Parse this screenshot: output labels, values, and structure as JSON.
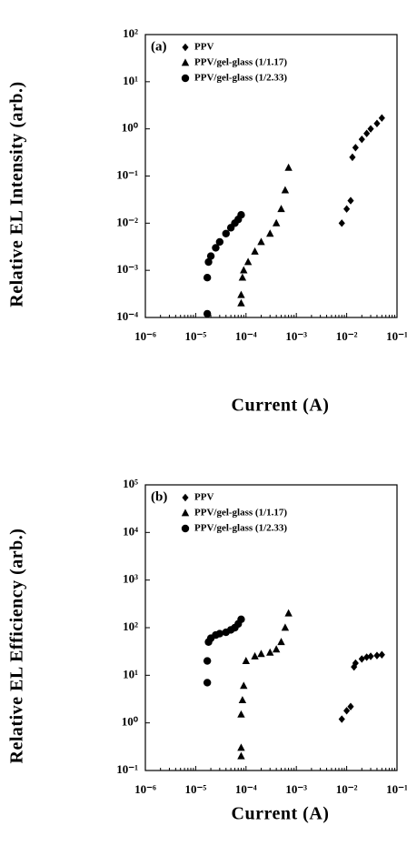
{
  "chart_data": [
    {
      "type": "scatter",
      "panel_label": "(a)",
      "xlabel": "Current (A)",
      "ylabel": "Relative EL Intensity (arb.)",
      "log_x": true,
      "log_y": true,
      "xlim": [
        1e-06,
        0.1
      ],
      "xticks": [
        {
          "value": 1e-06,
          "label": "10⁻⁶"
        },
        {
          "value": 1e-05,
          "label": "10⁻⁵"
        },
        {
          "value": 0.0001,
          "label": "10⁻⁴"
        },
        {
          "value": 0.001,
          "label": "10⁻³"
        },
        {
          "value": 0.01,
          "label": "10⁻²"
        },
        {
          "value": 0.1,
          "label": "10⁻¹"
        }
      ],
      "ylim": [
        0.0001,
        100
      ],
      "yticks": [
        {
          "value": 0.0001,
          "label": "10⁻⁴"
        },
        {
          "value": 0.001,
          "label": "10⁻³"
        },
        {
          "value": 0.01,
          "label": "10⁻²"
        },
        {
          "value": 0.1,
          "label": "10⁻¹"
        },
        {
          "value": 1,
          "label": "10⁰"
        },
        {
          "value": 10,
          "label": "10¹"
        },
        {
          "value": 100,
          "label": "10²"
        }
      ],
      "series": [
        {
          "name": "PPV",
          "marker": "diamond",
          "color": "#000000",
          "x": [
            0.008,
            0.01,
            0.012,
            0.013,
            0.015,
            0.02,
            0.025,
            0.03,
            0.04,
            0.05
          ],
          "values": [
            0.01,
            0.02,
            0.03,
            0.25,
            0.4,
            0.6,
            0.8,
            1,
            1.3,
            1.7
          ]
        },
        {
          "name": "PPV/gel-glass (1/1.17)",
          "marker": "triangle",
          "color": "#000000",
          "x": [
            8e-05,
            8e-05,
            8.5e-05,
            9e-05,
            0.00011,
            0.00015,
            0.0002,
            0.0003,
            0.0004,
            0.0005,
            0.0006,
            0.0007
          ],
          "values": [
            0.0002,
            0.0003,
            0.0007,
            0.001,
            0.0015,
            0.0025,
            0.004,
            0.006,
            0.01,
            0.02,
            0.05,
            0.15
          ]
        },
        {
          "name": "PPV/gel-glass (1/2.33)",
          "marker": "circle",
          "color": "#000000",
          "x": [
            1.7e-05,
            1.7e-05,
            1.8e-05,
            2e-05,
            2.5e-05,
            3e-05,
            4e-05,
            5e-05,
            6e-05,
            7e-05,
            8e-05
          ],
          "values": [
            0.00012,
            0.0007,
            0.0015,
            0.002,
            0.003,
            0.004,
            0.006,
            0.008,
            0.01,
            0.012,
            0.015
          ]
        }
      ]
    },
    {
      "type": "scatter",
      "panel_label": "(b)",
      "xlabel": "Current (A)",
      "ylabel": "Relative EL Efficiency (arb.)",
      "log_x": true,
      "log_y": true,
      "xlim": [
        1e-06,
        0.1
      ],
      "xticks": [
        {
          "value": 1e-06,
          "label": "10⁻⁶"
        },
        {
          "value": 1e-05,
          "label": "10⁻⁵"
        },
        {
          "value": 0.0001,
          "label": "10⁻⁴"
        },
        {
          "value": 0.001,
          "label": "10⁻³"
        },
        {
          "value": 0.01,
          "label": "10⁻²"
        },
        {
          "value": 0.1,
          "label": "10⁻¹"
        }
      ],
      "ylim": [
        0.1,
        100000
      ],
      "yticks": [
        {
          "value": 0.1,
          "label": "10⁻¹"
        },
        {
          "value": 1,
          "label": "10⁰"
        },
        {
          "value": 10,
          "label": "10¹"
        },
        {
          "value": 100,
          "label": "10²"
        },
        {
          "value": 1000,
          "label": "10³"
        },
        {
          "value": 10000,
          "label": "10⁴"
        },
        {
          "value": 100000,
          "label": "10⁵"
        }
      ],
      "series": [
        {
          "name": "PPV",
          "marker": "diamond",
          "color": "#000000",
          "x": [
            0.008,
            0.01,
            0.012,
            0.014,
            0.015,
            0.02,
            0.025,
            0.03,
            0.04,
            0.05
          ],
          "values": [
            1.2,
            1.8,
            2.2,
            15,
            18,
            22,
            24,
            25,
            26,
            27
          ]
        },
        {
          "name": "PPV/gel-glass (1/1.17)",
          "marker": "triangle",
          "color": "#000000",
          "x": [
            8e-05,
            8e-05,
            8e-05,
            8.5e-05,
            9e-05,
            0.0001,
            0.00015,
            0.0002,
            0.0003,
            0.0004,
            0.0005,
            0.0006,
            0.0007
          ],
          "values": [
            0.2,
            0.3,
            1.5,
            3,
            6,
            20,
            25,
            28,
            30,
            35,
            50,
            100,
            200
          ]
        },
        {
          "name": "PPV/gel-glass (1/2.33)",
          "marker": "circle",
          "color": "#000000",
          "x": [
            1.7e-05,
            1.7e-05,
            1.8e-05,
            2e-05,
            2.5e-05,
            3e-05,
            4e-05,
            5e-05,
            6e-05,
            7e-05,
            8e-05
          ],
          "values": [
            7,
            20,
            50,
            60,
            70,
            75,
            80,
            90,
            100,
            120,
            150
          ]
        }
      ]
    }
  ]
}
